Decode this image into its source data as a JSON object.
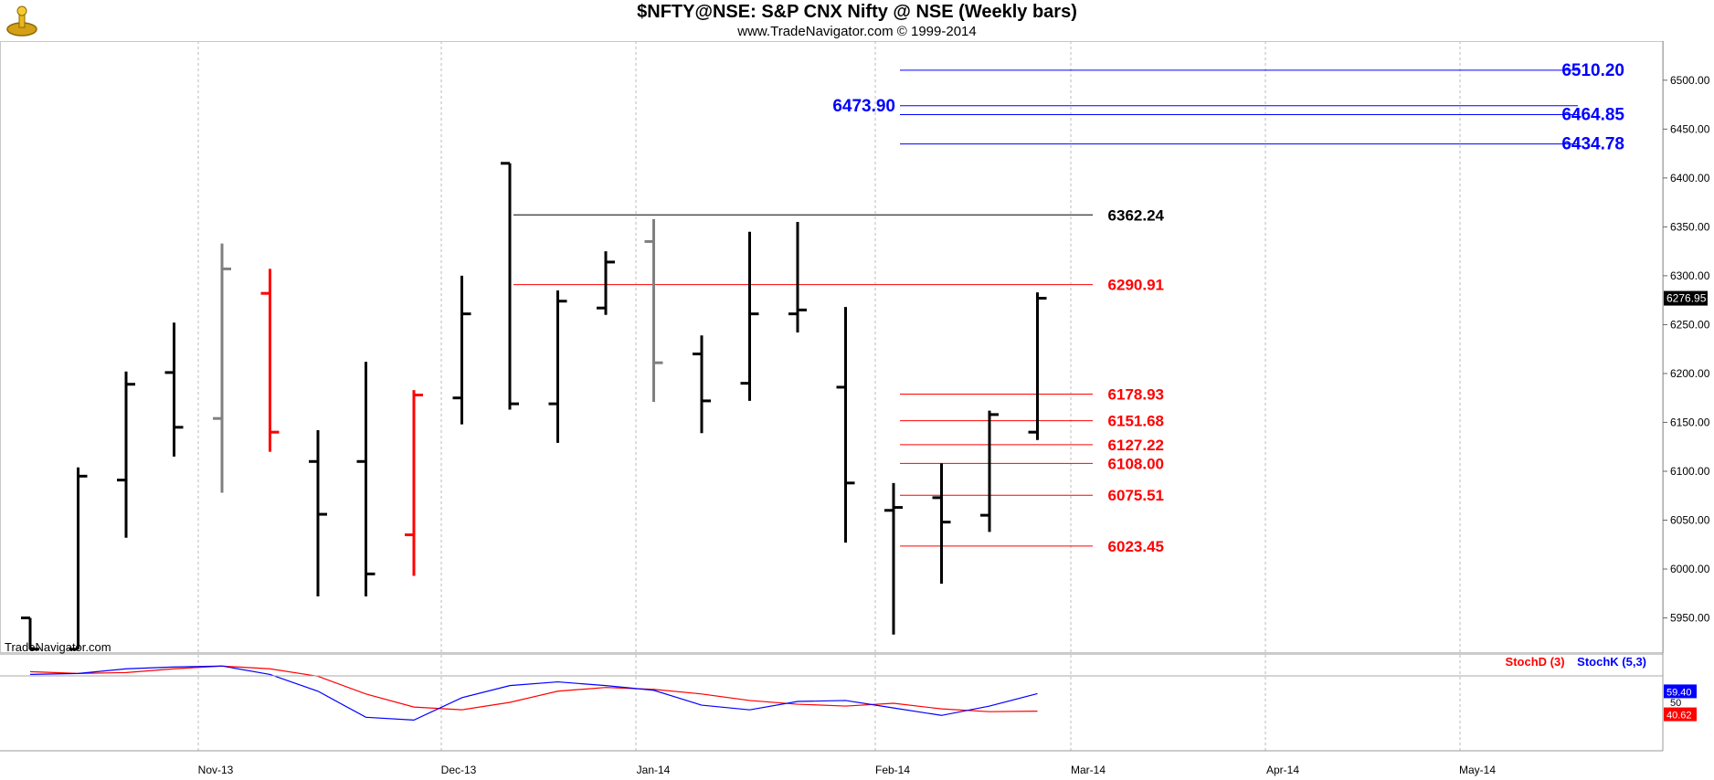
{
  "header": {
    "title": "$NFTY@NSE:  S&P CNX Nifty @ NSE  (Weekly bars)",
    "subtitle": "www.TradeNavigator.com © 1999-2014"
  },
  "watermark": "TradeNavigator.com",
  "colors": {
    "up": "#000000",
    "down": "#ff0000",
    "neutral": "#808080",
    "green": "#22dd22",
    "level_blue": "#0000ff",
    "level_red": "#ff0000",
    "level_black": "#000000"
  },
  "chart_data": {
    "type": "ohlc",
    "price_axis": {
      "ylim": [
        5915,
        6540
      ],
      "ticks": [
        "5950.00",
        "6000.00",
        "6050.00",
        "6100.00",
        "6150.00",
        "6200.00",
        "6250.00",
        "6300.00",
        "6350.00",
        "6400.00",
        "6450.00",
        "6500.00"
      ],
      "last_price_label": "6276.95"
    },
    "x_axis": {
      "labels": [
        "Nov-13",
        "Dec-13",
        "Jan-14",
        "Feb-14",
        "Mar-14",
        "Apr-14",
        "May-14"
      ]
    },
    "bars": [
      {
        "o": 5950,
        "h": 5950,
        "l": 5918,
        "c": 5918,
        "color": "up"
      },
      {
        "o": 5918,
        "h": 6104,
        "l": 5918,
        "c": 6095,
        "color": "up"
      },
      {
        "o": 6091,
        "h": 6202,
        "l": 6032,
        "c": 6189,
        "color": "up"
      },
      {
        "o": 6201,
        "h": 6252,
        "l": 6115,
        "c": 6145,
        "color": "up"
      },
      {
        "o": 6154,
        "h": 6333,
        "l": 6078,
        "c": 6307,
        "color": "neutral"
      },
      {
        "o": 6282,
        "h": 6307,
        "l": 6120,
        "c": 6140,
        "color": "down"
      },
      {
        "o": 6110,
        "h": 6142,
        "l": 5972,
        "c": 6056,
        "color": "up"
      },
      {
        "o": 6110,
        "h": 6212,
        "l": 5972,
        "c": 5995,
        "color": "up"
      },
      {
        "o": 6035,
        "h": 6183,
        "l": 5993,
        "c": 6178,
        "color": "down"
      },
      {
        "o": 6175,
        "h": 6300,
        "l": 6148,
        "c": 6261,
        "color": "up"
      },
      {
        "o": 6415,
        "h": 6415,
        "l": 6163,
        "c": 6169,
        "color": "up"
      },
      {
        "o": 6169,
        "h": 6285,
        "l": 6129,
        "c": 6274,
        "color": "up"
      },
      {
        "o": 6267,
        "h": 6325,
        "l": 6260,
        "c": 6314,
        "color": "up"
      },
      {
        "o": 6335,
        "h": 6358,
        "l": 6171,
        "c": 6211,
        "color": "neutral"
      },
      {
        "o": 6220,
        "h": 6239,
        "l": 6139,
        "c": 6172,
        "color": "up"
      },
      {
        "o": 6190,
        "h": 6345,
        "l": 6172,
        "c": 6261,
        "color": "up"
      },
      {
        "o": 6261,
        "h": 6355,
        "l": 6242,
        "c": 6265,
        "color": "up"
      },
      {
        "o": 6186,
        "h": 6268,
        "l": 6027,
        "c": 6088,
        "color": "up"
      },
      {
        "o": 6060,
        "h": 6088,
        "l": 5933,
        "c": 6063,
        "color": "up"
      },
      {
        "o": 6073,
        "h": 6108,
        "l": 5985,
        "c": 6048,
        "color": "up"
      },
      {
        "o": 6055,
        "h": 6162,
        "l": 6038,
        "c": 6158,
        "color": "up"
      },
      {
        "o": 6140,
        "h": 6283,
        "l": 6132,
        "c": 6277,
        "color": "up"
      }
    ],
    "levels": [
      {
        "value": 6510.2,
        "label": "6510.20",
        "color": "level_blue",
        "side": "right"
      },
      {
        "value": 6473.9,
        "label": "6473.90",
        "color": "level_blue",
        "side": "left"
      },
      {
        "value": 6464.85,
        "label": "6464.85",
        "color": "level_blue",
        "side": "right"
      },
      {
        "value": 6434.78,
        "label": "6434.78",
        "color": "level_blue",
        "side": "right"
      },
      {
        "value": 6362.24,
        "label": "6362.24",
        "color": "level_black",
        "side": "right"
      },
      {
        "value": 6290.91,
        "label": "6290.91",
        "color": "level_red",
        "side": "right"
      },
      {
        "value": 6178.93,
        "label": "6178.93",
        "color": "level_red",
        "side": "right"
      },
      {
        "value": 6151.68,
        "label": "6151.68",
        "color": "level_red",
        "side": "right"
      },
      {
        "value": 6127.22,
        "label": "6127.22",
        "color": "level_red",
        "side": "right"
      },
      {
        "value": 6108.0,
        "label": "6108.00",
        "color": "level_red",
        "side": "right"
      },
      {
        "value": 6075.51,
        "label": "6075.51",
        "color": "level_red",
        "side": "right"
      },
      {
        "value": 6023.45,
        "label": "6023.45",
        "color": "level_red",
        "side": "right"
      }
    ],
    "stochastic": {
      "legend_d": "StochD (3)",
      "legend_k": "StochK (5,3)",
      "ylim": [
        0,
        100
      ],
      "mid_label": "50",
      "k_label": "59.40",
      "d_label": "40.62",
      "k": [
        80,
        81,
        86,
        88,
        89,
        80,
        62,
        34,
        31,
        55,
        68,
        72,
        68,
        63,
        47,
        42,
        51,
        52,
        44,
        36,
        46,
        59.4
      ],
      "d": [
        83,
        81,
        82,
        86,
        89,
        86,
        78,
        59,
        45,
        42,
        50,
        62,
        66,
        64,
        59,
        52,
        48,
        46,
        49,
        43,
        40,
        40.6
      ]
    }
  }
}
